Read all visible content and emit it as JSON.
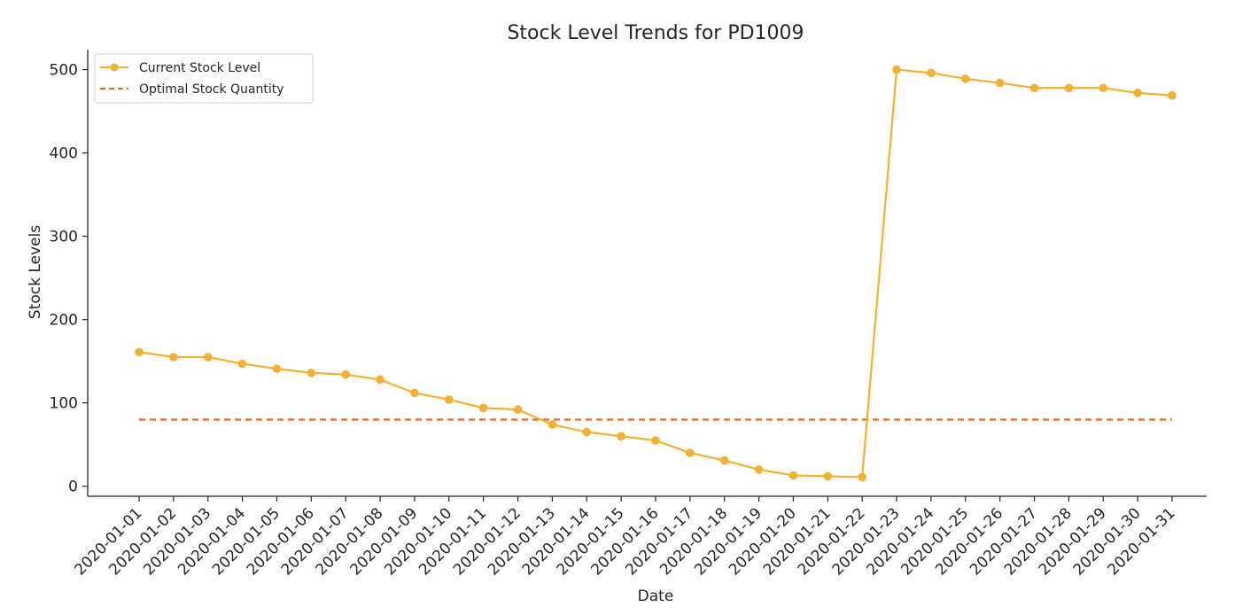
{
  "chart_data": {
    "type": "line",
    "title": "Stock Level Trends for PD1009",
    "xlabel": "Date",
    "ylabel": "Stock Levels",
    "categories": [
      "2020-01-01",
      "2020-01-02",
      "2020-01-03",
      "2020-01-04",
      "2020-01-05",
      "2020-01-06",
      "2020-01-07",
      "2020-01-08",
      "2020-01-09",
      "2020-01-10",
      "2020-01-11",
      "2020-01-12",
      "2020-01-13",
      "2020-01-14",
      "2020-01-15",
      "2020-01-16",
      "2020-01-17",
      "2020-01-18",
      "2020-01-19",
      "2020-01-20",
      "2020-01-21",
      "2020-01-22",
      "2020-01-23",
      "2020-01-24",
      "2020-01-25",
      "2020-01-26",
      "2020-01-27",
      "2020-01-28",
      "2020-01-29",
      "2020-01-30",
      "2020-01-31"
    ],
    "yticks": [
      0,
      100,
      200,
      300,
      400,
      500
    ],
    "ylim": [
      -12,
      524
    ],
    "grid": false,
    "legend_position": "top-left",
    "series": [
      {
        "name": "Current Stock Level",
        "style": "solid-with-markers",
        "color": "#F2B134",
        "values": [
          161,
          155,
          155,
          147,
          141,
          136,
          134,
          128,
          112,
          104,
          94,
          92,
          74,
          65,
          60,
          55,
          40,
          31,
          20,
          13,
          12,
          11,
          500,
          496,
          489,
          484,
          478,
          478,
          478,
          472,
          469
        ]
      },
      {
        "name": "Optimal Stock Quantity",
        "style": "dashed",
        "color": "#E8692A",
        "values": [
          80,
          80,
          80,
          80,
          80,
          80,
          80,
          80,
          80,
          80,
          80,
          80,
          80,
          80,
          80,
          80,
          80,
          80,
          80,
          80,
          80,
          80,
          80,
          80,
          80,
          80,
          80,
          80,
          80,
          80,
          80
        ]
      }
    ]
  }
}
